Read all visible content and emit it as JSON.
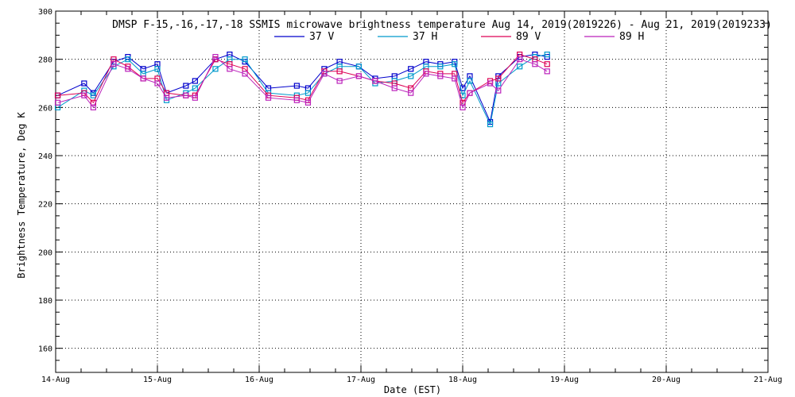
{
  "chart_data": {
    "type": "line",
    "title": "DMSP F-15,-16,-17,-18 SSMIS microwave brightness temperature Aug 14, 2019(2019226) - Aug 21, 2019(2019233)",
    "xlabel": "Date (EST)",
    "ylabel": "Brightness Temperature, Deg K",
    "xlim": [
      0,
      7
    ],
    "ylim": [
      150,
      300
    ],
    "x_ticks": [
      "14-Aug",
      "15-Aug",
      "16-Aug",
      "17-Aug",
      "18-Aug",
      "19-Aug",
      "20-Aug",
      "21-Aug"
    ],
    "y_ticks": [
      160,
      180,
      200,
      220,
      240,
      260,
      280,
      300
    ],
    "grid": true,
    "legend_position": "top",
    "series": [
      {
        "name": "37 V",
        "color": "#0000cc",
        "x": [
          0.02,
          0.28,
          0.37,
          0.57,
          0.71,
          0.86,
          1.0,
          1.09,
          1.28,
          1.37,
          1.57,
          1.71,
          1.86,
          2.09,
          2.37,
          2.48,
          2.64,
          2.79,
          2.98,
          3.14,
          3.33,
          3.49,
          3.64,
          3.78,
          3.92,
          4.0,
          4.07,
          4.27,
          4.35,
          4.56,
          4.71,
          4.83
        ],
        "y": [
          265,
          270,
          266,
          279,
          281,
          276,
          278,
          266,
          269,
          271,
          280,
          282,
          279,
          268,
          269,
          268,
          276,
          279,
          277,
          272,
          273,
          276,
          279,
          278,
          279,
          268,
          273,
          254,
          273,
          281,
          282,
          281
        ]
      },
      {
        "name": "37 H",
        "color": "#0099cc",
        "x": [
          0.02,
          0.28,
          0.37,
          0.57,
          0.71,
          0.86,
          1.0,
          1.09,
          1.28,
          1.37,
          1.57,
          1.71,
          1.86,
          2.09,
          2.37,
          2.48,
          2.64,
          2.79,
          2.98,
          3.14,
          3.33,
          3.49,
          3.64,
          3.78,
          3.92,
          4.0,
          4.07,
          4.27,
          4.35,
          4.56,
          4.71,
          4.83
        ],
        "y": [
          260,
          267,
          265,
          277,
          280,
          274,
          276,
          263,
          266,
          268,
          276,
          280,
          280,
          266,
          265,
          266,
          274,
          277,
          277,
          270,
          271,
          273,
          277,
          277,
          278,
          265,
          271,
          253,
          270,
          277,
          281,
          282
        ]
      },
      {
        "name": "89 V",
        "color": "#dd0055",
        "x": [
          0.02,
          0.28,
          0.37,
          0.57,
          0.71,
          0.86,
          1.0,
          1.09,
          1.28,
          1.37,
          1.57,
          1.71,
          1.86,
          2.09,
          2.37,
          2.48,
          2.64,
          2.79,
          2.98,
          3.14,
          3.33,
          3.49,
          3.64,
          3.78,
          3.92,
          4.0,
          4.07,
          4.27,
          4.35,
          4.56,
          4.71,
          4.83
        ],
        "y": [
          265,
          266,
          262,
          280,
          277,
          272,
          272,
          266,
          265,
          265,
          280,
          278,
          276,
          265,
          264,
          263,
          275,
          275,
          273,
          271,
          270,
          268,
          275,
          274,
          274,
          262,
          266,
          271,
          272,
          282,
          280,
          278
        ]
      },
      {
        "name": "89 H",
        "color": "#bb22bb",
        "x": [
          0.02,
          0.28,
          0.37,
          0.57,
          0.71,
          0.86,
          1.0,
          1.09,
          1.28,
          1.37,
          1.57,
          1.71,
          1.86,
          2.09,
          2.37,
          2.48,
          2.64,
          2.79,
          2.98,
          3.14,
          3.33,
          3.49,
          3.64,
          3.78,
          3.92,
          4.0,
          4.07,
          4.27,
          4.35,
          4.56,
          4.71,
          4.83
        ],
        "y": [
          262,
          265,
          260,
          278,
          276,
          272,
          270,
          264,
          265,
          264,
          281,
          276,
          274,
          264,
          263,
          262,
          274,
          271,
          273,
          271,
          268,
          266,
          274,
          273,
          272,
          260,
          266,
          270,
          267,
          280,
          278,
          275
        ]
      }
    ]
  }
}
